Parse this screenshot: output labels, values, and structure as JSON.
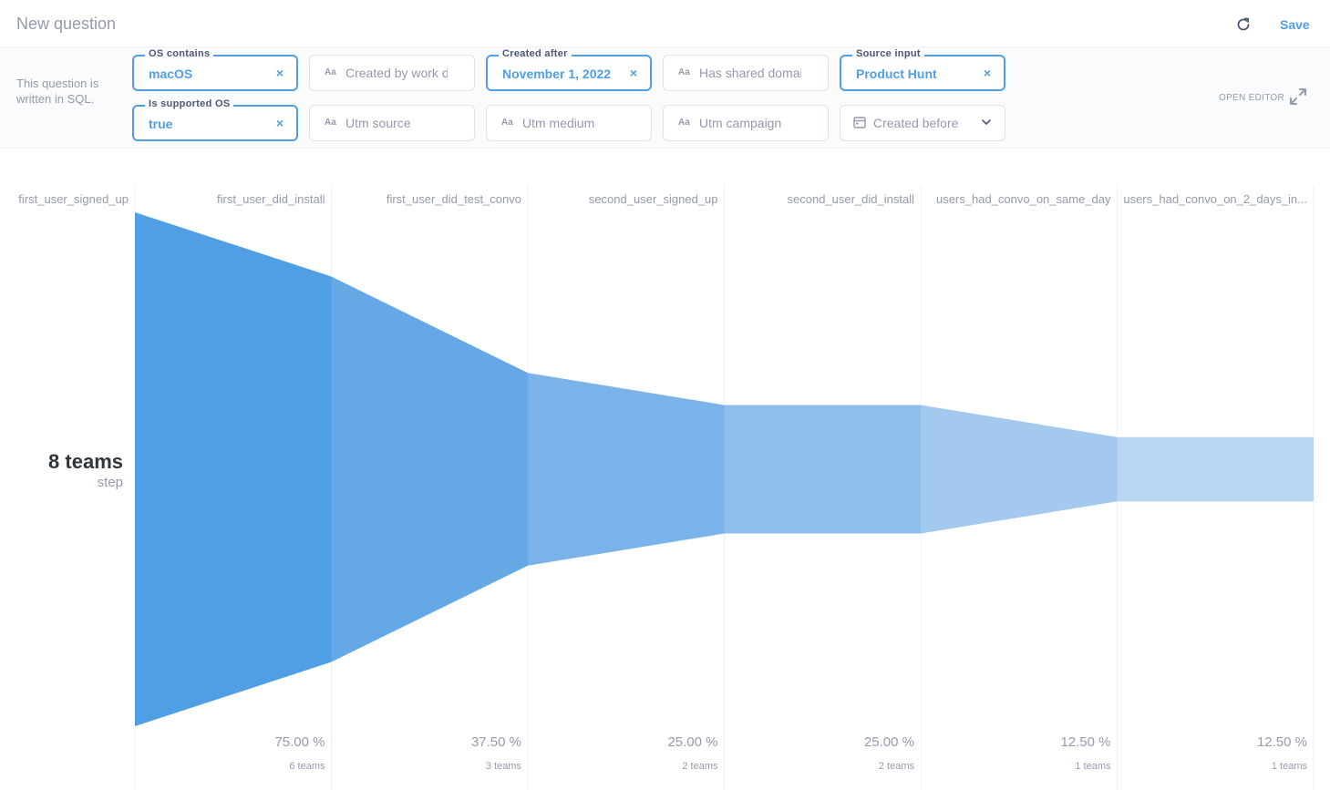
{
  "header": {
    "title": "New question",
    "save_label": "Save",
    "refresh_icon": "refresh-icon"
  },
  "sidebar_note": "This question is written in SQL.",
  "editor": {
    "open_label": "OPEN EDITOR",
    "expand_icon": "expand-icon"
  },
  "filters": {
    "os_contains": {
      "label": "OS contains",
      "value": "macOS"
    },
    "created_by": {
      "placeholder": "Created by work d"
    },
    "created_after": {
      "label": "Created after",
      "value": "November 1, 2022"
    },
    "shared_domain": {
      "placeholder": "Has shared domai"
    },
    "source_input": {
      "label": "Source input",
      "value": "Product Hunt"
    },
    "supported_os": {
      "label": "Is supported OS",
      "value": "true"
    },
    "utm_source": {
      "placeholder": "Utm source"
    },
    "utm_medium": {
      "placeholder": "Utm medium"
    },
    "utm_campaign": {
      "placeholder": "Utm campaign"
    },
    "created_before": {
      "placeholder": "Created before"
    },
    "text_type_icon": "Aa",
    "clear_glyph": "×"
  },
  "chart_data": {
    "type": "funnel",
    "first": {
      "name": "first_user_signed_up",
      "value": 8,
      "big_label": "8 teams",
      "sub_label": "step"
    },
    "steps": [
      {
        "name": "first_user_did_install",
        "value": 6,
        "pct": "75.00 %",
        "count": "6 teams"
      },
      {
        "name": "first_user_did_test_convo",
        "value": 3,
        "pct": "37.50 %",
        "count": "3 teams"
      },
      {
        "name": "second_user_signed_up",
        "value": 2,
        "pct": "25.00 %",
        "count": "2 teams"
      },
      {
        "name": "second_user_did_install",
        "value": 2,
        "pct": "25.00 %",
        "count": "2 teams"
      },
      {
        "name": "users_had_convo_on_same_day",
        "value": 1,
        "pct": "12.50 %",
        "count": "1 teams"
      },
      {
        "name": "users_had_convo_on_2_days_in...",
        "value": 1,
        "pct": "12.50 %",
        "count": "1 teams"
      }
    ],
    "colors": [
      "#509ee3",
      "#65a8e6",
      "#7ab3e9",
      "#8ebeec",
      "#a3c9ef",
      "#b8d5f2"
    ]
  }
}
